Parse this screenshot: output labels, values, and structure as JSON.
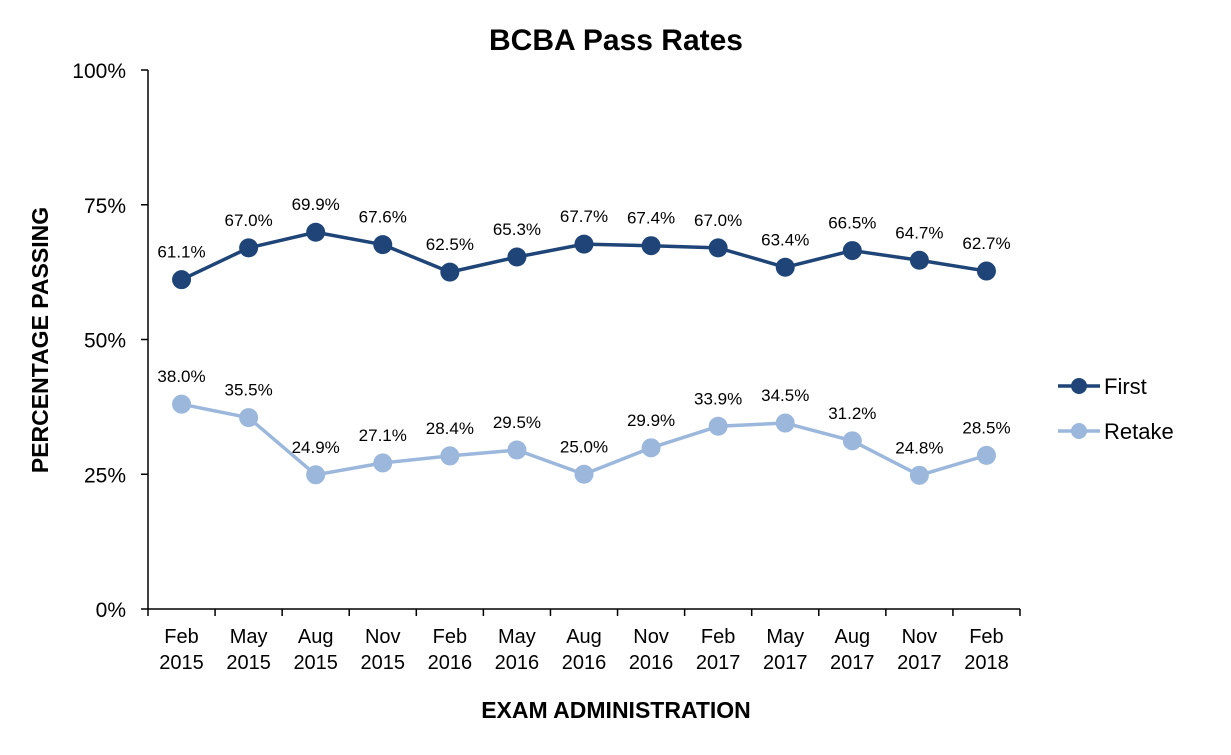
{
  "chart_data": {
    "type": "line",
    "title": "BCBA Pass Rates",
    "xlabel": "EXAM ADMINISTRATION",
    "ylabel": "PERCENTAGE PASSING",
    "categories": [
      [
        "Feb",
        "2015"
      ],
      [
        "May",
        "2015"
      ],
      [
        "Aug",
        "2015"
      ],
      [
        "Nov",
        "2015"
      ],
      [
        "Feb",
        "2016"
      ],
      [
        "May",
        "2016"
      ],
      [
        "Aug",
        "2016"
      ],
      [
        "Nov",
        "2016"
      ],
      [
        "Feb",
        "2017"
      ],
      [
        "May",
        "2017"
      ],
      [
        "Aug",
        "2017"
      ],
      [
        "Nov",
        "2017"
      ],
      [
        "Feb",
        "2018"
      ]
    ],
    "ylim": [
      0,
      100
    ],
    "yticks": [
      0,
      25,
      50,
      75,
      100
    ],
    "ytick_labels": [
      "0%",
      "25%",
      "50%",
      "75%",
      "100%"
    ],
    "grid": false,
    "legend_position": "right",
    "series": [
      {
        "name": "First",
        "color": "#1f4578",
        "values": [
          61.1,
          67.0,
          69.9,
          67.6,
          62.5,
          65.3,
          67.7,
          67.4,
          67.0,
          63.4,
          66.5,
          64.7,
          62.7
        ],
        "labels": [
          "61.1%",
          "67.0%",
          "69.9%",
          "67.6%",
          "62.5%",
          "65.3%",
          "67.7%",
          "67.4%",
          "67.0%",
          "63.4%",
          "66.5%",
          "64.7%",
          "62.7%"
        ]
      },
      {
        "name": "Retake",
        "color": "#9bb7dc",
        "values": [
          38.0,
          35.5,
          24.9,
          27.1,
          28.4,
          29.5,
          25.0,
          29.9,
          33.9,
          34.5,
          31.2,
          24.8,
          28.5
        ],
        "labels": [
          "38.0%",
          "35.5%",
          "24.9%",
          "27.1%",
          "28.4%",
          "29.5%",
          "25.0%",
          "29.9%",
          "33.9%",
          "34.5%",
          "31.2%",
          "24.8%",
          "28.5%"
        ]
      }
    ]
  }
}
